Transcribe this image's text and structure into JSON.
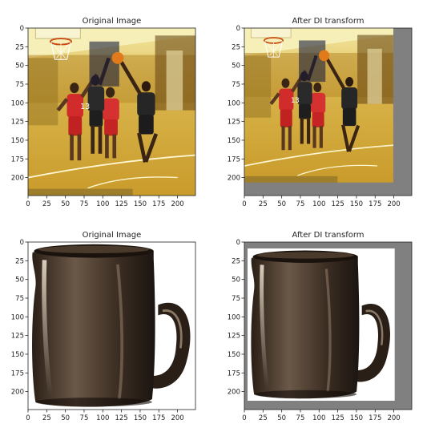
{
  "figure": {
    "panels": [
      {
        "id": "p1",
        "title": "Original Image",
        "kind": "basketball",
        "pad": 0
      },
      {
        "id": "p2",
        "title": "After DI transform",
        "kind": "basketball",
        "pad": 1
      },
      {
        "id": "p3",
        "title": "Original Image",
        "kind": "mug",
        "pad": 0
      },
      {
        "id": "p4",
        "title": "After DI transform",
        "kind": "mug",
        "pad": 1
      }
    ]
  },
  "chart_data": [
    {
      "type": "image",
      "title": "Original Image",
      "content": "basketball players",
      "x_ticks": [
        0,
        25,
        50,
        75,
        100,
        125,
        150,
        175,
        200
      ],
      "y_ticks": [
        0,
        25,
        50,
        75,
        100,
        125,
        150,
        175,
        200
      ],
      "xlim": [
        0,
        224
      ],
      "ylim": [
        224,
        0
      ]
    },
    {
      "type": "image",
      "title": "After DI transform",
      "content": "basketball players, shrunk and padded",
      "x_ticks": [
        0,
        25,
        50,
        75,
        100,
        125,
        150,
        175,
        200
      ],
      "y_ticks": [
        0,
        25,
        50,
        75,
        100,
        125,
        150,
        175,
        200
      ],
      "xlim": [
        0,
        224
      ],
      "ylim": [
        224,
        0
      ],
      "padding_color": "#808080",
      "inner_extent": {
        "x": [
          0,
          200
        ],
        "y": [
          0,
          208
        ]
      }
    },
    {
      "type": "image",
      "title": "Original Image",
      "content": "coffee mug",
      "x_ticks": [
        0,
        25,
        50,
        75,
        100,
        125,
        150,
        175,
        200
      ],
      "y_ticks": [
        0,
        25,
        50,
        75,
        100,
        125,
        150,
        175,
        200
      ],
      "xlim": [
        0,
        224
      ],
      "ylim": [
        224,
        0
      ]
    },
    {
      "type": "image",
      "title": "After DI transform",
      "content": "coffee mug, shrunk and padded",
      "x_ticks": [
        0,
        25,
        50,
        75,
        100,
        125,
        150,
        175,
        200
      ],
      "y_ticks": [
        0,
        25,
        50,
        75,
        100,
        125,
        150,
        175,
        200
      ],
      "xlim": [
        0,
        224
      ],
      "ylim": [
        224,
        0
      ],
      "padding_color": "#808080",
      "inner_extent": {
        "x": [
          5,
          203
        ],
        "y": [
          8,
          212
        ]
      }
    }
  ]
}
